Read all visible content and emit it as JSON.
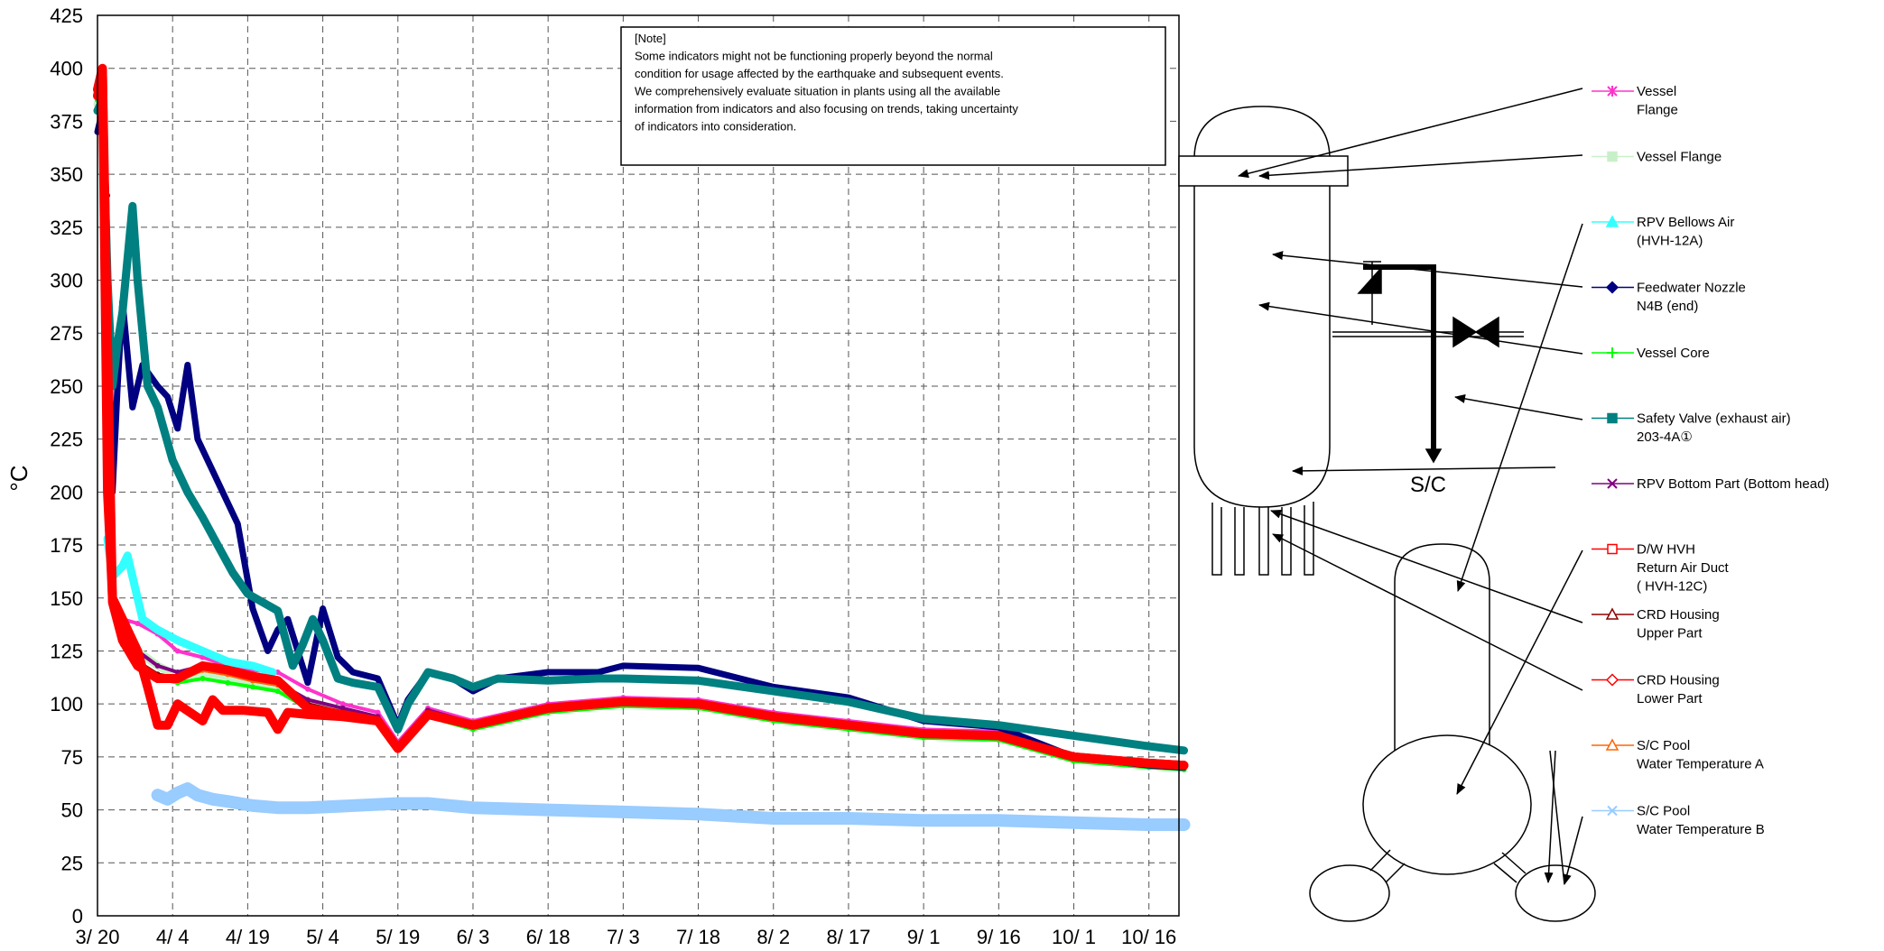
{
  "note": [
    "[Note]",
    "Some indicators might not be functioning properly beyond the normal",
    "condition for usage affected by the earthquake and subsequent events.",
    "We comprehensively evaluate situation in plants using all the available",
    "information from indicators and also focusing on trends, taking uncertainty",
    "of indicators into consideration."
  ],
  "sc_label": "S/C",
  "chart_data": {
    "type": "line",
    "title": "",
    "xlabel": "",
    "ylabel": "°C",
    "ylim": [
      0,
      425
    ],
    "yticks": [
      0,
      25,
      50,
      75,
      100,
      125,
      150,
      175,
      200,
      225,
      250,
      275,
      300,
      325,
      350,
      375,
      400,
      425
    ],
    "xlim_days": [
      0,
      216
    ],
    "xtick_labels": [
      "3/ 20",
      "4/ 4",
      "4/ 19",
      "5/ 4",
      "5/ 19",
      "6/ 3",
      "6/ 18",
      "7/ 3",
      "7/ 18",
      "8/ 2",
      "8/ 17",
      "9/ 1",
      "9/ 16",
      "10/ 1",
      "10/ 16"
    ],
    "grid": true,
    "legend_position": "right",
    "series": [
      {
        "name": [
          "Vessel",
          "Flange"
        ],
        "color": "#ff33cc",
        "marker": "asterisk",
        "x": [
          "3/20",
          "3/21",
          "3/22",
          "3/23",
          "3/25",
          "3/28",
          "4/1",
          "4/5",
          "4/10",
          "4/15",
          "4/20",
          "4/25",
          "5/1",
          "5/8",
          "5/15",
          "5/19",
          "5/25",
          "6/3",
          "6/18",
          "7/3",
          "7/18",
          "8/2",
          "8/17",
          "9/1",
          "9/16",
          "10/1",
          "10/16",
          "10/23"
        ],
        "y": [
          385,
          390,
          250,
          150,
          140,
          138,
          133,
          125,
          122,
          118,
          116,
          115,
          107,
          100,
          96,
          82,
          98,
          92,
          100,
          103,
          102,
          96,
          92,
          88,
          87,
          76,
          73,
          72
        ]
      },
      {
        "name": [
          "Vessel Flange"
        ],
        "color": "#c8f0c8",
        "marker": "square",
        "x": [
          "3/20",
          "3/21",
          "3/22",
          "3/23",
          "3/25",
          "3/28",
          "4/1",
          "4/5",
          "4/10",
          "4/15",
          "4/20",
          "4/25",
          "5/1",
          "5/8",
          "5/15",
          "5/19",
          "5/25",
          "6/3",
          "6/18",
          "7/3",
          "7/18",
          "8/2",
          "8/17",
          "9/1",
          "9/16",
          "10/1",
          "10/16",
          "10/23"
        ],
        "y": [
          383,
          388,
          245,
          148,
          135,
          125,
          118,
          113,
          115,
          113,
          110,
          108,
          100,
          96,
          93,
          80,
          95,
          89,
          97,
          100,
          99,
          93,
          89,
          85,
          84,
          74,
          71,
          70
        ]
      },
      {
        "name": [
          "RPV Bellows Air",
          "(HVH-12A)"
        ],
        "color": "#33ffff",
        "marker": "triangle",
        "x": [
          "3/22",
          "3/23",
          "3/25",
          "3/26",
          "3/27",
          "3/29",
          "4/1",
          "4/5",
          "4/10",
          "4/15",
          "4/20",
          "4/24"
        ],
        "y": [
          178,
          160,
          165,
          170,
          160,
          140,
          135,
          130,
          125,
          120,
          118,
          115
        ]
      },
      {
        "name": [
          "Feedwater Nozzle",
          "N4B (end)"
        ],
        "color": "#000080",
        "marker": "diamond",
        "x": [
          "3/20",
          "3/21",
          "3/22",
          "3/23",
          "3/24",
          "3/25",
          "3/27",
          "3/29",
          "4/1",
          "4/3",
          "4/5",
          "4/7",
          "4/9",
          "4/12",
          "4/15",
          "4/17",
          "4/20",
          "4/23",
          "4/25",
          "4/27",
          "5/1",
          "5/4",
          "5/7",
          "5/10",
          "5/15",
          "5/19",
          "5/21",
          "5/25",
          "5/30",
          "6/3",
          "6/8",
          "6/18",
          "6/28",
          "7/3",
          "7/18",
          "8/2",
          "8/17",
          "9/1",
          "9/16",
          "10/1",
          "10/16",
          "10/23"
        ],
        "y": [
          370,
          380,
          300,
          200,
          250,
          290,
          240,
          260,
          250,
          245,
          230,
          260,
          225,
          210,
          195,
          185,
          145,
          125,
          135,
          140,
          110,
          145,
          122,
          115,
          112,
          90,
          102,
          115,
          112,
          106,
          112,
          115,
          115,
          118,
          117,
          108,
          103,
          92,
          89,
          75,
          71,
          70
        ]
      },
      {
        "name": [
          "Vessel Core"
        ],
        "color": "#00ff00",
        "marker": "plus",
        "x": [
          "3/20",
          "3/21",
          "3/22",
          "3/23",
          "3/25",
          "3/28",
          "4/1",
          "4/5",
          "4/10",
          "4/15",
          "4/20",
          "4/25",
          "5/1",
          "5/8",
          "5/15",
          "5/19",
          "5/25",
          "6/3",
          "6/18",
          "7/3",
          "7/18",
          "8/2",
          "8/17",
          "9/1",
          "9/16",
          "10/1",
          "10/16",
          "10/23"
        ],
        "y": [
          385,
          390,
          240,
          148,
          130,
          118,
          112,
          110,
          112,
          110,
          108,
          106,
          98,
          95,
          92,
          79,
          94,
          88,
          96,
          99,
          98,
          92,
          88,
          84,
          83,
          73,
          70,
          69
        ]
      },
      {
        "name": [
          "Safety Valve (exhaust air)",
          "203-4A①"
        ],
        "color": "#008080",
        "marker": "square",
        "x": [
          "3/20",
          "3/21",
          "3/22",
          "3/23",
          "3/24",
          "3/25",
          "3/27",
          "3/28",
          "3/30",
          "4/1",
          "4/4",
          "4/7",
          "4/10",
          "4/13",
          "4/16",
          "4/19",
          "4/22",
          "4/25",
          "4/28",
          "4/30",
          "5/2",
          "5/4",
          "5/7",
          "5/10",
          "5/15",
          "5/19",
          "5/21",
          "5/25",
          "5/30",
          "6/3",
          "6/8",
          "6/18",
          "6/28",
          "7/3",
          "7/18",
          "8/2",
          "8/17",
          "9/1",
          "9/16",
          "10/1",
          "10/16",
          "10/23"
        ],
        "y": [
          380,
          385,
          300,
          250,
          270,
          285,
          335,
          300,
          250,
          240,
          215,
          200,
          188,
          175,
          162,
          152,
          148,
          144,
          118,
          128,
          140,
          130,
          112,
          110,
          108,
          88,
          100,
          115,
          112,
          108,
          112,
          111,
          112,
          112,
          111,
          106,
          101,
          93,
          90,
          85,
          80,
          78
        ]
      },
      {
        "name": [
          "RPV Bottom Part (Bottom head)"
        ],
        "color": "#800080",
        "marker": "x",
        "x": [
          "3/20",
          "3/21",
          "3/22",
          "3/23",
          "3/25",
          "3/28",
          "4/1",
          "4/5",
          "4/10",
          "4/15",
          "4/20",
          "4/25",
          "5/1",
          "5/8",
          "5/15",
          "5/19",
          "5/25",
          "6/3",
          "6/18",
          "7/3",
          "7/18",
          "8/2",
          "8/17",
          "9/1",
          "9/16",
          "10/1",
          "10/16",
          "10/23"
        ],
        "y": [
          390,
          395,
          340,
          145,
          135,
          125,
          118,
          115,
          118,
          115,
          112,
          110,
          102,
          98,
          94,
          81,
          97,
          91,
          99,
          102,
          101,
          95,
          91,
          87,
          86,
          75,
          72,
          71
        ]
      },
      {
        "name": [
          "D/W HVH",
          "Return Air Duct",
          "( HVH-12C)"
        ],
        "color": "#ff0000",
        "marker": "square-open",
        "x": [
          "3/20",
          "3/21",
          "3/22",
          "3/22.5",
          "3/23",
          "3/25",
          "3/28",
          "3/30",
          "4/1",
          "4/3",
          "4/5",
          "4/10",
          "4/12",
          "4/14",
          "4/18",
          "4/23",
          "4/25",
          "4/27",
          "5/1",
          "5/8",
          "5/15",
          "5/19",
          "5/25",
          "6/3",
          "6/18",
          "7/3",
          "7/18",
          "8/2",
          "8/17",
          "9/1",
          "9/16",
          "10/1",
          "10/16",
          "10/23"
        ],
        "y": [
          390,
          400,
          200,
          175,
          150,
          140,
          125,
          108,
          90,
          90,
          100,
          92,
          102,
          97,
          97,
          96,
          88,
          96,
          95,
          94,
          92,
          79,
          95,
          90,
          98,
          101,
          100,
          94,
          90,
          86,
          85,
          75,
          72,
          71
        ]
      },
      {
        "name": [
          "CRD Housing",
          "Upper Part"
        ],
        "color": "#8b0000",
        "marker": "triangle-open",
        "x": [
          "3/20",
          "3/21",
          "3/22",
          "3/23",
          "3/25",
          "3/28",
          "4/1",
          "4/5",
          "4/10",
          "4/15",
          "4/20",
          "4/25",
          "5/1",
          "5/8",
          "5/15",
          "5/19",
          "5/25",
          "6/3",
          "6/18",
          "7/3",
          "7/18",
          "8/2",
          "8/17",
          "9/1",
          "9/16",
          "10/1",
          "10/16",
          "10/23"
        ],
        "y": [
          388,
          398,
          280,
          150,
          132,
          120,
          114,
          112,
          116,
          114,
          111,
          109,
          100,
          96,
          93,
          80,
          96,
          90,
          98,
          101,
          100,
          94,
          90,
          86,
          85,
          75,
          72,
          71
        ]
      },
      {
        "name": [
          "CRD Housing",
          "Lower Part"
        ],
        "color": "#ff0000",
        "marker": "diamond-open",
        "x": [
          "3/20",
          "3/21",
          "3/22",
          "3/23",
          "3/25",
          "3/28",
          "4/1",
          "4/5",
          "4/10",
          "4/15",
          "4/20",
          "4/25",
          "5/1",
          "5/8",
          "5/15",
          "5/19",
          "5/25",
          "6/3",
          "6/18",
          "7/3",
          "7/18",
          "8/2",
          "8/17",
          "9/1",
          "9/16",
          "10/1",
          "10/16",
          "10/23"
        ],
        "y": [
          387,
          397,
          270,
          148,
          130,
          118,
          112,
          112,
          118,
          116,
          113,
          111,
          98,
          95,
          92,
          79,
          95,
          90,
          98,
          101,
          100,
          94,
          90,
          86,
          85,
          75,
          72,
          71
        ]
      },
      {
        "name": [
          "S/C Pool",
          "Water Temperature A"
        ],
        "color": "#ff6600",
        "marker": "triangle-open",
        "x": [
          "3/20",
          "3/21",
          "3/22",
          "3/23",
          "3/25",
          "3/28",
          "4/1",
          "4/5",
          "4/10",
          "4/15",
          "4/20",
          "4/25",
          "5/1",
          "5/8",
          "5/15",
          "5/19",
          "5/25",
          "6/3",
          "6/18",
          "7/3",
          "7/18",
          "8/2",
          "8/17",
          "9/1",
          "9/16",
          "10/1",
          "10/16",
          "10/23"
        ],
        "y": [
          386,
          396,
          260,
          146,
          128,
          118,
          112,
          111,
          116,
          114,
          111,
          109,
          99,
          95,
          92,
          79,
          95,
          90,
          98,
          101,
          100,
          94,
          90,
          86,
          85,
          75,
          72,
          71
        ]
      },
      {
        "name": [
          "S/C Pool",
          "Water Temperature B"
        ],
        "color": "#99ccff",
        "marker": "x",
        "x": [
          "4/1",
          "4/3",
          "4/5",
          "4/7",
          "4/9",
          "4/12",
          "4/15",
          "4/20",
          "4/25",
          "5/1",
          "5/10",
          "5/19",
          "5/25",
          "6/3",
          "6/18",
          "7/3",
          "7/18",
          "8/2",
          "8/17",
          "9/1",
          "9/16",
          "10/1",
          "10/16",
          "10/23"
        ],
        "y": [
          57,
          55,
          58,
          60,
          57,
          55,
          54,
          52,
          51,
          51,
          52,
          53,
          53,
          51,
          50,
          49,
          48,
          46,
          46,
          45,
          45,
          44,
          43,
          43
        ]
      }
    ]
  }
}
